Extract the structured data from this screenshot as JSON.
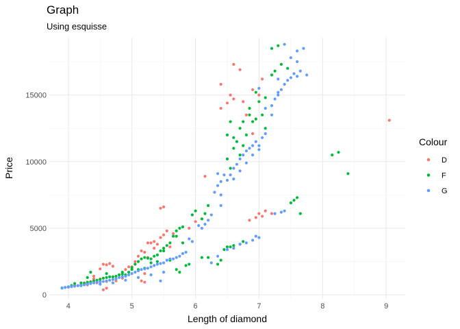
{
  "chart_data": {
    "type": "scatter",
    "title": "Graph",
    "subtitle": "Using esquisse",
    "xlabel": "Length of diamond",
    "ylabel": "Price",
    "xlim": [
      3.7,
      9.3
    ],
    "ylim": [
      -300,
      19300
    ],
    "xticks": [
      4,
      5,
      6,
      7,
      8,
      9
    ],
    "yticks": [
      0,
      5000,
      10000,
      15000
    ],
    "grid": true,
    "legend": {
      "title": "Colour",
      "placement": "right"
    },
    "series": [
      {
        "name": "D",
        "color": "#F8766D",
        "points": [
          [
            3.95,
            560
          ],
          [
            4.05,
            620
          ],
          [
            4.1,
            700
          ],
          [
            4.2,
            760
          ],
          [
            4.25,
            900
          ],
          [
            4.3,
            880
          ],
          [
            4.35,
            1000
          ],
          [
            4.4,
            1200
          ],
          [
            4.4,
            1400
          ],
          [
            4.45,
            1100
          ],
          [
            4.5,
            1200
          ],
          [
            4.5,
            1950
          ],
          [
            4.55,
            2300
          ],
          [
            4.6,
            2250
          ],
          [
            4.65,
            2350
          ],
          [
            4.7,
            2150
          ],
          [
            4.55,
            380
          ],
          [
            4.6,
            500
          ],
          [
            4.7,
            1350
          ],
          [
            4.8,
            1500
          ],
          [
            4.9,
            1900
          ],
          [
            4.95,
            2100
          ],
          [
            5.0,
            2100
          ],
          [
            5.05,
            2300
          ],
          [
            5.1,
            2900
          ],
          [
            5.15,
            3300
          ],
          [
            5.2,
            3200
          ],
          [
            5.25,
            3900
          ],
          [
            5.3,
            3900
          ],
          [
            5.35,
            4000
          ],
          [
            5.4,
            3800
          ],
          [
            5.45,
            4300
          ],
          [
            5.5,
            4500
          ],
          [
            5.2,
            1600
          ],
          [
            5.15,
            1050
          ],
          [
            5.2,
            950
          ],
          [
            5.45,
            6500
          ],
          [
            5.5,
            6600
          ],
          [
            5.6,
            3600
          ],
          [
            5.55,
            4800
          ],
          [
            5.65,
            4600
          ],
          [
            5.9,
            5000
          ],
          [
            6.0,
            5500
          ],
          [
            6.15,
            8900
          ],
          [
            6.4,
            14000
          ],
          [
            6.5,
            14400
          ],
          [
            6.55,
            15000
          ],
          [
            6.6,
            14700
          ],
          [
            6.4,
            15800
          ],
          [
            6.6,
            17300
          ],
          [
            6.7,
            16900
          ],
          [
            6.75,
            14500
          ],
          [
            6.8,
            13500
          ],
          [
            6.9,
            12100
          ],
          [
            6.9,
            15400
          ],
          [
            7.0,
            15000
          ],
          [
            7.05,
            16200
          ],
          [
            7.1,
            6300
          ],
          [
            6.95,
            5800
          ],
          [
            7.0,
            6100
          ],
          [
            7.05,
            5900
          ],
          [
            6.85,
            5600
          ],
          [
            7.2,
            6100
          ],
          [
            9.05,
            13100
          ],
          [
            4.0,
            580
          ],
          [
            4.15,
            680
          ],
          [
            4.3,
            750
          ],
          [
            4.45,
            900
          ],
          [
            4.6,
            1000
          ],
          [
            4.75,
            1050
          ],
          [
            4.85,
            1250
          ],
          [
            5.35,
            3500
          ],
          [
            5.25,
            2800
          ],
          [
            5.05,
            2500
          ],
          [
            4.9,
            1500
          ]
        ]
      },
      {
        "name": "F",
        "color": "#00BA38",
        "points": [
          [
            3.9,
            520
          ],
          [
            4.0,
            600
          ],
          [
            4.05,
            700
          ],
          [
            4.1,
            850
          ],
          [
            4.2,
            900
          ],
          [
            4.25,
            850
          ],
          [
            4.3,
            950
          ],
          [
            4.35,
            950
          ],
          [
            4.4,
            1050
          ],
          [
            4.45,
            1100
          ],
          [
            4.5,
            1150
          ],
          [
            4.55,
            1250
          ],
          [
            4.6,
            1300
          ],
          [
            4.65,
            1350
          ],
          [
            4.7,
            1350
          ],
          [
            4.75,
            1400
          ],
          [
            4.8,
            1500
          ],
          [
            4.85,
            1550
          ],
          [
            4.9,
            1500
          ],
          [
            4.95,
            1700
          ],
          [
            5.0,
            2050
          ],
          [
            5.05,
            2300
          ],
          [
            5.1,
            2500
          ],
          [
            5.15,
            2700
          ],
          [
            5.2,
            2800
          ],
          [
            5.25,
            2750
          ],
          [
            5.3,
            2700
          ],
          [
            5.35,
            2900
          ],
          [
            5.4,
            3000
          ],
          [
            5.45,
            3300
          ],
          [
            5.5,
            3500
          ],
          [
            5.55,
            3700
          ],
          [
            5.6,
            3900
          ],
          [
            5.65,
            4400
          ],
          [
            5.7,
            4800
          ],
          [
            5.75,
            5000
          ],
          [
            5.8,
            5100
          ],
          [
            5.7,
            4400
          ],
          [
            5.8,
            3900
          ],
          [
            5.6,
            2600
          ],
          [
            5.4,
            2500
          ],
          [
            5.5,
            3300
          ],
          [
            5.3,
            2400
          ],
          [
            5.2,
            2000
          ],
          [
            5.1,
            1900
          ],
          [
            5.0,
            1900
          ],
          [
            4.85,
            1700
          ],
          [
            4.6,
            1600
          ],
          [
            4.35,
            1700
          ],
          [
            4.3,
            1300
          ],
          [
            4.2,
            700
          ],
          [
            5.75,
            1700
          ],
          [
            5.7,
            1900
          ],
          [
            5.85,
            2200
          ],
          [
            5.9,
            2300
          ],
          [
            5.95,
            6000
          ],
          [
            6.0,
            6300
          ],
          [
            6.1,
            5700
          ],
          [
            6.15,
            6100
          ],
          [
            6.2,
            6700
          ],
          [
            6.1,
            2800
          ],
          [
            6.2,
            2800
          ],
          [
            6.35,
            2300
          ],
          [
            6.4,
            2600
          ],
          [
            6.45,
            3400
          ],
          [
            6.5,
            3600
          ],
          [
            6.55,
            3600
          ],
          [
            6.6,
            3700
          ],
          [
            6.7,
            3800
          ],
          [
            6.75,
            4000
          ],
          [
            6.5,
            10200
          ],
          [
            6.55,
            9500
          ],
          [
            6.6,
            11000
          ],
          [
            6.65,
            11500
          ],
          [
            6.7,
            12500
          ],
          [
            6.75,
            13000
          ],
          [
            6.8,
            12000
          ],
          [
            6.85,
            13500
          ],
          [
            6.9,
            13000
          ],
          [
            6.95,
            13200
          ],
          [
            6.6,
            11800
          ],
          [
            6.7,
            10500
          ],
          [
            6.5,
            12000
          ],
          [
            6.55,
            13000
          ],
          [
            6.75,
            11200
          ],
          [
            6.85,
            14000
          ],
          [
            6.95,
            15200
          ],
          [
            7.0,
            14500
          ],
          [
            7.05,
            13500
          ],
          [
            7.1,
            14800
          ],
          [
            7.2,
            16500
          ],
          [
            7.25,
            16800
          ],
          [
            7.2,
            18500
          ],
          [
            7.3,
            18700
          ],
          [
            7.35,
            17300
          ],
          [
            7.45,
            17000
          ],
          [
            7.5,
            6900
          ],
          [
            7.55,
            7100
          ],
          [
            7.6,
            7300
          ],
          [
            7.65,
            6100
          ],
          [
            8.15,
            10500
          ],
          [
            8.25,
            10700
          ],
          [
            8.4,
            9100
          ],
          [
            7.1,
            12500
          ]
        ]
      },
      {
        "name": "G",
        "color": "#619CFF",
        "points": [
          [
            3.9,
            500
          ],
          [
            3.95,
            560
          ],
          [
            4.0,
            580
          ],
          [
            4.05,
            620
          ],
          [
            4.1,
            650
          ],
          [
            4.15,
            700
          ],
          [
            4.2,
            720
          ],
          [
            4.25,
            750
          ],
          [
            4.3,
            800
          ],
          [
            4.35,
            850
          ],
          [
            4.4,
            900
          ],
          [
            4.45,
            950
          ],
          [
            4.5,
            980
          ],
          [
            4.55,
            1000
          ],
          [
            4.6,
            1050
          ],
          [
            4.65,
            1100
          ],
          [
            4.7,
            1150
          ],
          [
            4.75,
            1200
          ],
          [
            4.8,
            1300
          ],
          [
            4.85,
            1350
          ],
          [
            4.9,
            1400
          ],
          [
            4.95,
            1500
          ],
          [
            5.0,
            1600
          ],
          [
            5.05,
            1700
          ],
          [
            5.1,
            1800
          ],
          [
            5.15,
            1900
          ],
          [
            5.2,
            1950
          ],
          [
            5.25,
            2000
          ],
          [
            5.3,
            2100
          ],
          [
            5.35,
            2200
          ],
          [
            5.4,
            2300
          ],
          [
            5.45,
            2350
          ],
          [
            5.5,
            2400
          ],
          [
            5.55,
            2600
          ],
          [
            5.6,
            2700
          ],
          [
            5.65,
            2700
          ],
          [
            5.7,
            2800
          ],
          [
            5.75,
            2900
          ],
          [
            5.8,
            3100
          ],
          [
            5.85,
            3200
          ],
          [
            4.5,
            800
          ],
          [
            4.7,
            900
          ],
          [
            4.9,
            1100
          ],
          [
            5.1,
            1300
          ],
          [
            5.3,
            1500
          ],
          [
            5.5,
            1700
          ],
          [
            5.45,
            1050
          ],
          [
            5.9,
            4200
          ],
          [
            5.95,
            4000
          ],
          [
            6.05,
            5200
          ],
          [
            6.1,
            5000
          ],
          [
            6.15,
            5300
          ],
          [
            6.2,
            5600
          ],
          [
            6.25,
            6000
          ],
          [
            6.3,
            7700
          ],
          [
            6.35,
            8200
          ],
          [
            6.35,
            9100
          ],
          [
            6.4,
            8500
          ],
          [
            6.45,
            9000
          ],
          [
            6.5,
            8600
          ],
          [
            6.55,
            9000
          ],
          [
            6.6,
            9500
          ],
          [
            6.65,
            9800
          ],
          [
            6.7,
            10200
          ],
          [
            6.75,
            10500
          ],
          [
            6.8,
            10800
          ],
          [
            6.85,
            11000
          ],
          [
            6.9,
            11200
          ],
          [
            6.95,
            11500
          ],
          [
            7.0,
            11200
          ],
          [
            7.05,
            11800
          ],
          [
            7.1,
            12100
          ],
          [
            6.6,
            8700
          ],
          [
            6.7,
            9300
          ],
          [
            6.8,
            9900
          ],
          [
            6.9,
            10500
          ],
          [
            7.0,
            10900
          ],
          [
            6.4,
            7500
          ],
          [
            6.4,
            6700
          ],
          [
            6.5,
            3400
          ],
          [
            6.6,
            3500
          ],
          [
            6.7,
            3800
          ],
          [
            6.8,
            3900
          ],
          [
            6.9,
            4100
          ],
          [
            7.0,
            4300
          ],
          [
            6.95,
            4400
          ],
          [
            6.35,
            2900
          ],
          [
            6.25,
            2400
          ],
          [
            7.0,
            15500
          ],
          [
            7.1,
            14000
          ],
          [
            7.2,
            14200
          ],
          [
            7.25,
            14700
          ],
          [
            7.3,
            15000
          ],
          [
            7.35,
            15400
          ],
          [
            7.4,
            15800
          ],
          [
            7.45,
            16100
          ],
          [
            7.5,
            16300
          ],
          [
            7.55,
            16600
          ],
          [
            7.6,
            16400
          ],
          [
            7.65,
            16800
          ],
          [
            7.75,
            16500
          ],
          [
            7.4,
            18800
          ],
          [
            7.5,
            17800
          ],
          [
            7.6,
            18300
          ],
          [
            7.7,
            18500
          ],
          [
            7.6,
            17500
          ],
          [
            7.3,
            16200
          ],
          [
            7.2,
            13500
          ],
          [
            7.25,
            6100
          ],
          [
            7.35,
            6200
          ],
          [
            7.4,
            6300
          ],
          [
            7.3,
            15200
          ]
        ]
      }
    ]
  }
}
